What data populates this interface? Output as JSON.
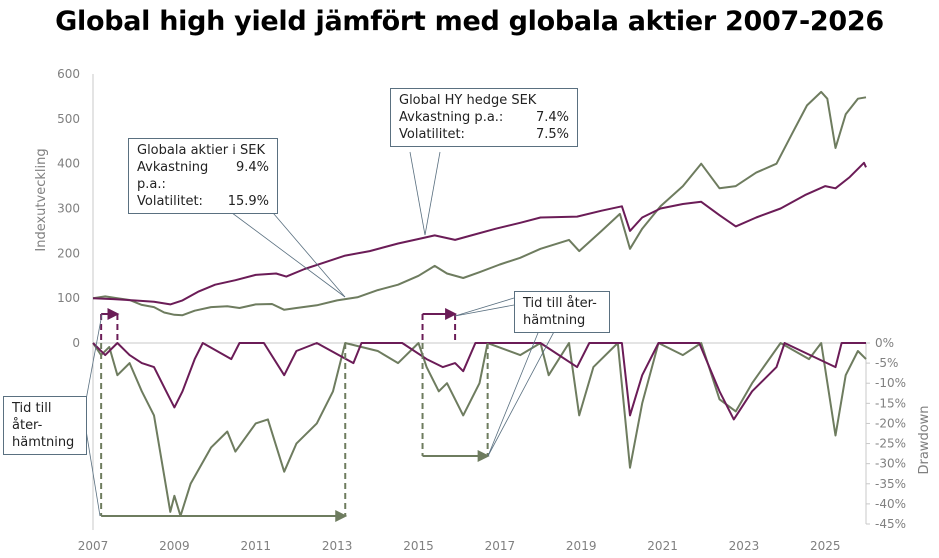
{
  "chart_data": [
    {
      "type": "line",
      "title": "Global high yield jämfört med globala aktier 2007-2026",
      "ylabel": "Indexutveckling",
      "ylim": [
        0,
        600
      ],
      "yticks": [
        "0",
        "100",
        "200",
        "300",
        "400",
        "500",
        "600"
      ],
      "xticks": [
        "2007",
        "2009",
        "2011",
        "2013",
        "2015",
        "2017",
        "2019",
        "2021",
        "2023",
        "2025"
      ],
      "xlim": [
        2007,
        2026
      ],
      "colors": {
        "equity": "#6e7c5f",
        "hy": "#6b1c57"
      },
      "series": [
        {
          "key": "equity",
          "points": [
            [
              2007,
              100
            ],
            [
              2007.3,
              104
            ],
            [
              2007.6,
              100
            ],
            [
              2007.9,
              96
            ],
            [
              2008.2,
              85
            ],
            [
              2008.5,
              80
            ],
            [
              2008.75,
              68
            ],
            [
              2009.0,
              63
            ],
            [
              2009.2,
              62
            ],
            [
              2009.5,
              72
            ],
            [
              2009.9,
              80
            ],
            [
              2010.3,
              82
            ],
            [
              2010.6,
              78
            ],
            [
              2011.0,
              86
            ],
            [
              2011.4,
              87
            ],
            [
              2011.7,
              74
            ],
            [
              2012.0,
              78
            ],
            [
              2012.5,
              84
            ],
            [
              2013.0,
              95
            ],
            [
              2013.5,
              102
            ],
            [
              2014.0,
              118
            ],
            [
              2014.5,
              130
            ],
            [
              2015.0,
              150
            ],
            [
              2015.4,
              172
            ],
            [
              2015.7,
              155
            ],
            [
              2016.1,
              145
            ],
            [
              2016.5,
              158
            ],
            [
              2017.0,
              175
            ],
            [
              2017.5,
              190
            ],
            [
              2018.0,
              210
            ],
            [
              2018.7,
              230
            ],
            [
              2018.95,
              205
            ],
            [
              2019.5,
              250
            ],
            [
              2019.95,
              288
            ],
            [
              2020.2,
              210
            ],
            [
              2020.5,
              255
            ],
            [
              2020.95,
              305
            ],
            [
              2021.5,
              350
            ],
            [
              2021.95,
              400
            ],
            [
              2022.4,
              345
            ],
            [
              2022.8,
              350
            ],
            [
              2023.3,
              380
            ],
            [
              2023.8,
              400
            ],
            [
              2024.2,
              470
            ],
            [
              2024.55,
              530
            ],
            [
              2024.9,
              560
            ],
            [
              2025.05,
              545
            ],
            [
              2025.25,
              435
            ],
            [
              2025.5,
              510
            ],
            [
              2025.8,
              545
            ],
            [
              2026.0,
              548
            ]
          ]
        },
        {
          "key": "hy",
          "points": [
            [
              2007,
              100
            ],
            [
              2007.5,
              98
            ],
            [
              2008.0,
              95
            ],
            [
              2008.5,
              92
            ],
            [
              2008.9,
              86
            ],
            [
              2009.2,
              95
            ],
            [
              2009.6,
              115
            ],
            [
              2010.0,
              130
            ],
            [
              2010.5,
              140
            ],
            [
              2011.0,
              152
            ],
            [
              2011.5,
              155
            ],
            [
              2011.75,
              148
            ],
            [
              2012.2,
              165
            ],
            [
              2012.7,
              180
            ],
            [
              2013.2,
              195
            ],
            [
              2013.8,
              205
            ],
            [
              2014.5,
              222
            ],
            [
              2015.0,
              232
            ],
            [
              2015.4,
              240
            ],
            [
              2015.9,
              230
            ],
            [
              2016.3,
              240
            ],
            [
              2016.9,
              255
            ],
            [
              2017.5,
              268
            ],
            [
              2018.0,
              280
            ],
            [
              2018.9,
              282
            ],
            [
              2019.5,
              295
            ],
            [
              2020.0,
              305
            ],
            [
              2020.2,
              250
            ],
            [
              2020.5,
              280
            ],
            [
              2020.95,
              300
            ],
            [
              2021.5,
              310
            ],
            [
              2021.95,
              315
            ],
            [
              2022.4,
              285
            ],
            [
              2022.8,
              260
            ],
            [
              2023.3,
              280
            ],
            [
              2023.9,
              300
            ],
            [
              2024.5,
              330
            ],
            [
              2025.0,
              350
            ],
            [
              2025.25,
              345
            ],
            [
              2025.6,
              370
            ],
            [
              2025.95,
              402
            ],
            [
              2026.0,
              392
            ]
          ]
        }
      ],
      "annotations": [
        {
          "title": "Globala aktier i SEK",
          "rows": [
            {
              "label": "Avkastning p.a.:",
              "value": "9.4%"
            },
            {
              "label": "Volatilitet:",
              "value": "15.9%"
            }
          ]
        },
        {
          "title": "Global HY hedge SEK",
          "rows": [
            {
              "label": "Avkastning p.a.:",
              "value": "7.4%"
            },
            {
              "label": "Volatilitet:",
              "value": "7.5%"
            }
          ]
        }
      ]
    },
    {
      "type": "line",
      "ylabel": "Drawdown",
      "ylim": [
        -45,
        0
      ],
      "yticks": [
        "0%",
        "-5%",
        "-10%",
        "-15%",
        "-20%",
        "-25%",
        "-30%",
        "-35%",
        "-40%",
        "-45%"
      ],
      "series": [
        {
          "key": "equity",
          "points": [
            [
              2007,
              0
            ],
            [
              2007.2,
              -3
            ],
            [
              2007.4,
              -1
            ],
            [
              2007.6,
              -8
            ],
            [
              2007.9,
              -5
            ],
            [
              2008.2,
              -12
            ],
            [
              2008.5,
              -18
            ],
            [
              2008.75,
              -33
            ],
            [
              2008.9,
              -42
            ],
            [
              2009.0,
              -38
            ],
            [
              2009.15,
              -43
            ],
            [
              2009.4,
              -35
            ],
            [
              2009.9,
              -26
            ],
            [
              2010.3,
              -22
            ],
            [
              2010.5,
              -27
            ],
            [
              2011.0,
              -20
            ],
            [
              2011.3,
              -19
            ],
            [
              2011.7,
              -32
            ],
            [
              2012.0,
              -25
            ],
            [
              2012.5,
              -20
            ],
            [
              2012.9,
              -12
            ],
            [
              2013.2,
              0
            ],
            [
              2014.0,
              -2
            ],
            [
              2014.5,
              -5
            ],
            [
              2015.0,
              0
            ],
            [
              2015.2,
              -6
            ],
            [
              2015.5,
              -12
            ],
            [
              2015.7,
              -10
            ],
            [
              2016.1,
              -18
            ],
            [
              2016.5,
              -10
            ],
            [
              2016.7,
              0
            ],
            [
              2017.5,
              -3
            ],
            [
              2018.0,
              0
            ],
            [
              2018.2,
              -8
            ],
            [
              2018.7,
              0
            ],
            [
              2018.95,
              -18
            ],
            [
              2019.3,
              -6
            ],
            [
              2019.9,
              0
            ],
            [
              2020.2,
              -31
            ],
            [
              2020.5,
              -15
            ],
            [
              2020.9,
              0
            ],
            [
              2021.5,
              -3
            ],
            [
              2021.95,
              0
            ],
            [
              2022.4,
              -14
            ],
            [
              2022.8,
              -17
            ],
            [
              2023.2,
              -10
            ],
            [
              2023.9,
              0
            ],
            [
              2024.6,
              -4
            ],
            [
              2024.9,
              0
            ],
            [
              2025.25,
              -23
            ],
            [
              2025.5,
              -8
            ],
            [
              2025.8,
              -2
            ],
            [
              2026.0,
              -4
            ]
          ]
        },
        {
          "key": "hy",
          "points": [
            [
              2007,
              0
            ],
            [
              2007.3,
              -3
            ],
            [
              2007.6,
              0
            ],
            [
              2007.9,
              -3
            ],
            [
              2008.2,
              -5
            ],
            [
              2008.5,
              -6
            ],
            [
              2008.8,
              -12
            ],
            [
              2009.0,
              -16
            ],
            [
              2009.2,
              -12
            ],
            [
              2009.5,
              -4
            ],
            [
              2009.7,
              0
            ],
            [
              2010.4,
              -4
            ],
            [
              2010.6,
              0
            ],
            [
              2011.2,
              0
            ],
            [
              2011.7,
              -8
            ],
            [
              2012.0,
              -2
            ],
            [
              2012.5,
              0
            ],
            [
              2013.4,
              -5
            ],
            [
              2013.6,
              0
            ],
            [
              2014.6,
              0
            ],
            [
              2015.2,
              -4
            ],
            [
              2015.6,
              -6
            ],
            [
              2015.9,
              -5
            ],
            [
              2016.1,
              -7
            ],
            [
              2016.4,
              0
            ],
            [
              2017.5,
              0
            ],
            [
              2018.0,
              0
            ],
            [
              2018.9,
              -6
            ],
            [
              2019.2,
              0
            ],
            [
              2020.0,
              0
            ],
            [
              2020.2,
              -18
            ],
            [
              2020.5,
              -8
            ],
            [
              2020.9,
              0
            ],
            [
              2021.9,
              0
            ],
            [
              2022.4,
              -12
            ],
            [
              2022.75,
              -19
            ],
            [
              2023.2,
              -12
            ],
            [
              2023.8,
              -6
            ],
            [
              2024.0,
              0
            ],
            [
              2025.25,
              -6
            ],
            [
              2025.4,
              0
            ],
            [
              2026.0,
              0
            ]
          ]
        }
      ],
      "recovery": [
        {
          "key": "hy",
          "from": 2007.2,
          "to": 2007.6
        },
        {
          "key": "equity",
          "from": 2007.2,
          "to": 2013.2
        },
        {
          "key": "hy",
          "from": 2015.1,
          "to": 2015.9
        },
        {
          "key": "equity",
          "from": 2015.1,
          "to": 2016.7
        }
      ],
      "recovery_label": [
        "Tid till åter-",
        "hämtning"
      ]
    }
  ]
}
